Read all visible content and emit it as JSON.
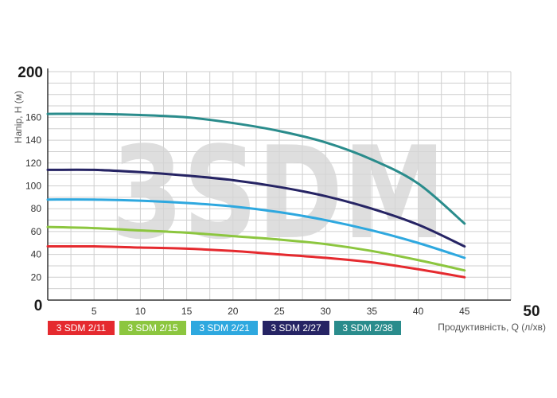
{
  "chart_data": {
    "type": "line",
    "title": "",
    "watermark": "3SDM",
    "xlabel": "Продуктивність, Q (л/хв)",
    "ylabel": "Напір, H (м)",
    "xlim": [
      0,
      50
    ],
    "ylim": [
      0,
      200
    ],
    "x_ticks": [
      "5",
      "10",
      "15",
      "20",
      "25",
      "30",
      "35",
      "40",
      "45"
    ],
    "y_ticks": [
      "20",
      "40",
      "60",
      "80",
      "100",
      "120",
      "140",
      "160"
    ],
    "x_origin_label": "0",
    "x_end_label": "50",
    "y_end_label": "200",
    "grid": true,
    "legend_position": "bottom-left",
    "series": [
      {
        "name": "3 SDM 2/11",
        "color": "#e52a2f",
        "x": [
          0,
          5,
          10,
          15,
          20,
          25,
          30,
          35,
          40,
          45
        ],
        "y": [
          47,
          47,
          46,
          45,
          43,
          40,
          37,
          33,
          27,
          20
        ]
      },
      {
        "name": "3 SDM 2/15",
        "color": "#8cc63f",
        "x": [
          0,
          5,
          10,
          15,
          20,
          25,
          30,
          35,
          40,
          45
        ],
        "y": [
          64,
          63,
          61,
          59,
          56,
          53,
          49,
          43,
          35,
          26
        ]
      },
      {
        "name": "3 SDM 2/21",
        "color": "#2ea8df",
        "x": [
          0,
          5,
          10,
          15,
          20,
          25,
          30,
          35,
          40,
          45
        ],
        "y": [
          88,
          88,
          87,
          85,
          82,
          77,
          70,
          61,
          50,
          37
        ]
      },
      {
        "name": "3 SDM 2/27",
        "color": "#262464",
        "x": [
          0,
          5,
          10,
          15,
          20,
          25,
          30,
          35,
          40,
          45
        ],
        "y": [
          114,
          114,
          112,
          109,
          105,
          99,
          91,
          80,
          66,
          47
        ]
      },
      {
        "name": "3 SDM 2/38",
        "color": "#2a8c8c",
        "x": [
          0,
          5,
          10,
          15,
          20,
          25,
          30,
          35,
          40,
          45
        ],
        "y": [
          163,
          163,
          162,
          160,
          155,
          148,
          138,
          123,
          102,
          67
        ]
      }
    ]
  }
}
